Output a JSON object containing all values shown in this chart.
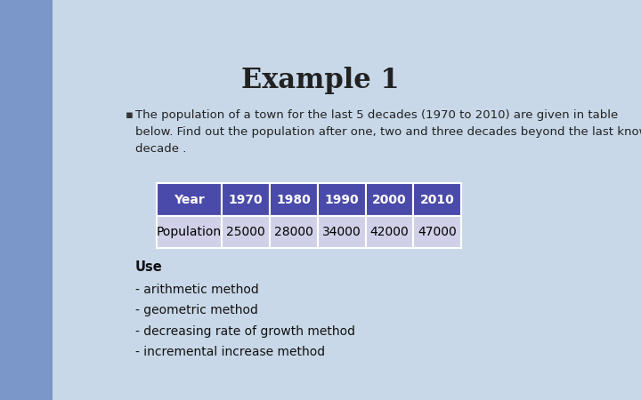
{
  "title": "Example 1",
  "title_fontsize": 22,
  "title_fontweight": "bold",
  "background_color": "#c8d8e8",
  "left_panel_color": "#7b96c8",
  "bullet_text": "The population of a town for the last 5 decades (1970 to 2010) are given in table\nbelow. Find out the population after one, two and three decades beyond the last known\ndecade .",
  "bullet_fontsize": 9.5,
  "table_header": [
    "Year",
    "1970",
    "1980",
    "1990",
    "2000",
    "2010"
  ],
  "table_row_label": "Population",
  "table_row_values": [
    "25000",
    "28000",
    "34000",
    "42000",
    "47000"
  ],
  "table_header_bg": "#4a4aaa",
  "table_header_fg": "#ffffff",
  "table_row_bg": "#d0d0e8",
  "table_row_fg": "#000000",
  "use_label": "Use",
  "methods": [
    "- arithmetic method",
    "- geometric method",
    "- decreasing rate of growth method",
    "- incremental increase method"
  ],
  "methods_fontsize": 10,
  "use_fontsize": 10.5
}
